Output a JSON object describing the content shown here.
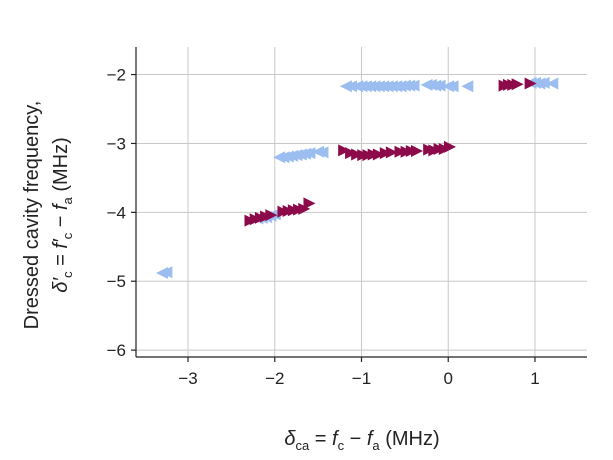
{
  "chart_data": {
    "type": "scatter",
    "title": "",
    "xlabel": "δca = fc − fa (MHz)",
    "ylabel": "Dressed cavity frequency, δ′c = f′c − fa (MHz)",
    "xlabel_parts": {
      "sym": "δ",
      "sym_sub": "ca",
      "eq": " = ",
      "f1": "f",
      "f1_sub": "c",
      "minus": " − ",
      "f2": "f",
      "f2_sub": "a",
      "unit": " (MHz)"
    },
    "ylabel_line1": "Dressed cavity frequency,",
    "ylabel_parts": {
      "sym": "δ′",
      "sym_sub": "c",
      "eq": " = ",
      "f1": "f′",
      "f1_sub": "c",
      "minus": " − ",
      "f2": "f",
      "f2_sub": "a",
      "unit": " (MHz)"
    },
    "xlim": [
      -3.6,
      1.6
    ],
    "ylim": [
      -6.1,
      -1.6
    ],
    "xticks": [
      -3,
      -2,
      -1,
      0,
      1
    ],
    "xtick_labels": [
      "−3",
      "−2",
      "−1",
      "0",
      "1"
    ],
    "yticks": [
      -2,
      -3,
      -4,
      -5,
      -6
    ],
    "ytick_labels": [
      "−2",
      "−3",
      "−4",
      "−5",
      "−6"
    ],
    "grid": true,
    "legend": "none",
    "series": [
      {
        "marker": "left-triangle",
        "color": "#9cbdf0",
        "points": [
          [
            -3.3,
            -4.88
          ],
          [
            -3.25,
            -4.87
          ],
          [
            -2.2,
            -4.09
          ],
          [
            -2.15,
            -4.08
          ],
          [
            -2.1,
            -4.07
          ],
          [
            -2.05,
            -4.05
          ],
          [
            -2.0,
            -4.03
          ],
          [
            -1.95,
            -3.2
          ],
          [
            -1.9,
            -3.2
          ],
          [
            -1.85,
            -3.19
          ],
          [
            -1.8,
            -3.18
          ],
          [
            -1.75,
            -3.17
          ],
          [
            -1.7,
            -3.16
          ],
          [
            -1.65,
            -3.15
          ],
          [
            -1.6,
            -3.14
          ],
          [
            -1.5,
            -3.12
          ],
          [
            -1.45,
            -3.13
          ],
          [
            -1.18,
            -2.17
          ],
          [
            -1.12,
            -2.17
          ],
          [
            -1.05,
            -2.17
          ],
          [
            -1.0,
            -2.17
          ],
          [
            -0.95,
            -2.17
          ],
          [
            -0.9,
            -2.17
          ],
          [
            -0.85,
            -2.17
          ],
          [
            -0.8,
            -2.17
          ],
          [
            -0.75,
            -2.17
          ],
          [
            -0.7,
            -2.17
          ],
          [
            -0.65,
            -2.17
          ],
          [
            -0.6,
            -2.17
          ],
          [
            -0.55,
            -2.17
          ],
          [
            -0.5,
            -2.16
          ],
          [
            -0.45,
            -2.16
          ],
          [
            -0.4,
            -2.16
          ],
          [
            -0.25,
            -2.15
          ],
          [
            -0.2,
            -2.15
          ],
          [
            -0.15,
            -2.16
          ],
          [
            -0.1,
            -2.16
          ],
          [
            0.0,
            -2.17
          ],
          [
            0.05,
            -2.17
          ],
          [
            0.22,
            -2.17
          ],
          [
            0.95,
            -2.12
          ],
          [
            1.0,
            -2.12
          ],
          [
            1.05,
            -2.13
          ],
          [
            1.1,
            -2.12
          ],
          [
            1.2,
            -2.13
          ]
        ]
      },
      {
        "marker": "right-triangle",
        "color": "#8c0a4a",
        "points": [
          [
            -2.28,
            -4.12
          ],
          [
            -2.22,
            -4.1
          ],
          [
            -2.16,
            -4.08
          ],
          [
            -2.1,
            -4.06
          ],
          [
            -2.04,
            -4.04
          ],
          [
            -1.9,
            -3.99
          ],
          [
            -1.84,
            -3.98
          ],
          [
            -1.78,
            -3.97
          ],
          [
            -1.72,
            -3.96
          ],
          [
            -1.66,
            -3.95
          ],
          [
            -1.6,
            -3.87
          ],
          [
            -1.2,
            -3.1
          ],
          [
            -1.12,
            -3.14
          ],
          [
            -1.05,
            -3.16
          ],
          [
            -0.98,
            -3.17
          ],
          [
            -0.92,
            -3.17
          ],
          [
            -0.86,
            -3.16
          ],
          [
            -0.8,
            -3.16
          ],
          [
            -0.72,
            -3.14
          ],
          [
            -0.65,
            -3.13
          ],
          [
            -0.55,
            -3.12
          ],
          [
            -0.48,
            -3.12
          ],
          [
            -0.42,
            -3.11
          ],
          [
            -0.36,
            -3.11
          ],
          [
            -0.22,
            -3.09
          ],
          [
            -0.16,
            -3.1
          ],
          [
            -0.1,
            -3.08
          ],
          [
            -0.04,
            -3.08
          ],
          [
            0.02,
            -3.05
          ],
          [
            0.65,
            -2.16
          ],
          [
            0.7,
            -2.15
          ],
          [
            0.75,
            -2.15
          ],
          [
            0.8,
            -2.14
          ],
          [
            0.95,
            -2.13
          ]
        ]
      }
    ]
  }
}
